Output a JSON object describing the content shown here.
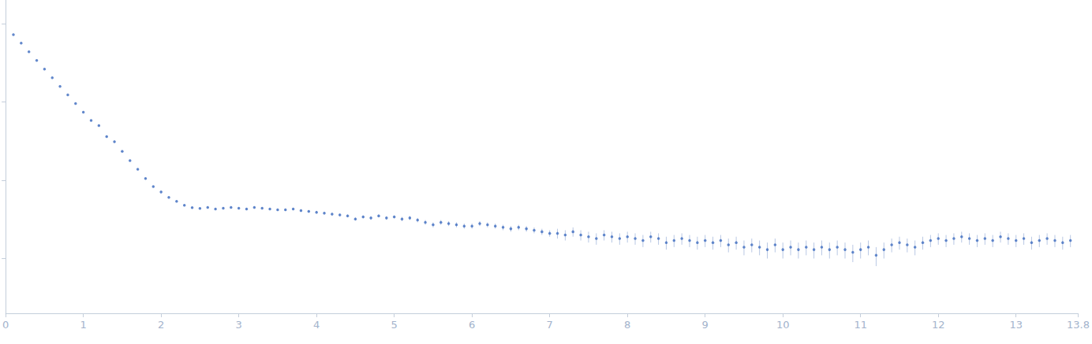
{
  "chart_data": {
    "type": "scatter",
    "log": "y",
    "grid": false,
    "tick_labels": "x",
    "marker": "circle",
    "color": "#3d6bbf",
    "xlim": [
      0,
      13.8
    ],
    "xticks": [
      0,
      1,
      2,
      3,
      4,
      5,
      6,
      7,
      8,
      9,
      10,
      11,
      12,
      13
    ],
    "ylim": [
      0.2,
      2000
    ],
    "yticks": [
      1,
      10,
      100,
      1000
    ],
    "x": [
      0.1,
      0.2,
      0.3,
      0.4,
      0.5,
      0.6,
      0.7,
      0.8,
      0.9,
      1.0,
      1.1,
      1.2,
      1.3,
      1.4,
      1.5,
      1.6,
      1.7,
      1.8,
      1.9,
      2.0,
      2.1,
      2.2,
      2.3,
      2.4,
      2.5,
      2.6,
      2.7,
      2.8,
      2.9,
      3.0,
      3.1,
      3.2,
      3.3,
      3.4,
      3.5,
      3.6,
      3.7,
      3.8,
      3.9,
      4.0,
      4.1,
      4.2,
      4.3,
      4.4,
      4.5,
      4.6,
      4.7,
      4.8,
      4.9,
      5.0,
      5.1,
      5.2,
      5.3,
      5.4,
      5.5,
      5.6,
      5.7,
      5.8,
      5.9,
      6.0,
      6.1,
      6.2,
      6.3,
      6.4,
      6.5,
      6.6,
      6.7,
      6.8,
      6.9,
      7.0,
      7.1,
      7.2,
      7.3,
      7.4,
      7.5,
      7.6,
      7.7,
      7.8,
      7.9,
      8.0,
      8.1,
      8.2,
      8.3,
      8.4,
      8.5,
      8.6,
      8.7,
      8.8,
      8.9,
      9.0,
      9.1,
      9.2,
      9.3,
      9.4,
      9.5,
      9.6,
      9.7,
      9.8,
      9.9,
      10.0,
      10.1,
      10.2,
      10.3,
      10.4,
      10.5,
      10.6,
      10.7,
      10.8,
      10.9,
      11.0,
      11.1,
      11.2,
      11.3,
      11.4,
      11.5,
      11.6,
      11.7,
      11.8,
      11.9,
      12.0,
      12.1,
      12.2,
      12.3,
      12.4,
      12.5,
      12.6,
      12.7,
      12.8,
      12.9,
      13.0,
      13.1,
      13.2,
      13.3,
      13.4,
      13.5,
      13.6,
      13.7
    ],
    "values": [
      724,
      562,
      437,
      339,
      263,
      204,
      158,
      123,
      95.5,
      74.1,
      58,
      50,
      36,
      31,
      23.4,
      17.8,
      13.8,
      10.5,
      8.32,
      7.08,
      6.03,
      5.37,
      4.79,
      4.47,
      4.37,
      4.5,
      4.3,
      4.4,
      4.5,
      4.4,
      4.3,
      4.5,
      4.4,
      4.3,
      4.2,
      4.2,
      4.3,
      4.1,
      4.0,
      3.9,
      3.8,
      3.7,
      3.6,
      3.5,
      3.2,
      3.4,
      3.3,
      3.5,
      3.3,
      3.4,
      3.2,
      3.3,
      3.1,
      2.9,
      2.7,
      2.9,
      2.8,
      2.7,
      2.6,
      2.6,
      2.8,
      2.7,
      2.6,
      2.5,
      2.4,
      2.5,
      2.4,
      2.3,
      2.2,
      2.1,
      2.1,
      2.0,
      2.2,
      2.0,
      1.9,
      1.8,
      2.0,
      1.9,
      1.8,
      1.9,
      1.8,
      1.7,
      1.9,
      1.8,
      1.6,
      1.7,
      1.8,
      1.7,
      1.6,
      1.7,
      1.6,
      1.7,
      1.5,
      1.6,
      1.4,
      1.5,
      1.4,
      1.3,
      1.5,
      1.3,
      1.4,
      1.3,
      1.4,
      1.3,
      1.4,
      1.3,
      1.4,
      1.3,
      1.2,
      1.3,
      1.4,
      1.1,
      1.3,
      1.5,
      1.6,
      1.5,
      1.4,
      1.6,
      1.7,
      1.8,
      1.7,
      1.8,
      1.9,
      1.8,
      1.7,
      1.8,
      1.7,
      1.9,
      1.8,
      1.7,
      1.8,
      1.6,
      1.7,
      1.8,
      1.7,
      1.6,
      1.7
    ],
    "errors": [
      2,
      2,
      1,
      1,
      1,
      1,
      1,
      0.5,
      0.5,
      0.5,
      1,
      1,
      1,
      1,
      0.4,
      0.3,
      0.2,
      0.15,
      0.12,
      0.1,
      0.1,
      0.1,
      0.1,
      0.1,
      0.1,
      0.1,
      0.1,
      0.1,
      0.1,
      0.1,
      0.1,
      0.1,
      0.1,
      0.1,
      0.1,
      0.15,
      0.15,
      0.15,
      0.15,
      0.15,
      0.15,
      0.15,
      0.15,
      0.15,
      0.15,
      0.15,
      0.15,
      0.15,
      0.15,
      0.15,
      0.2,
      0.2,
      0.2,
      0.2,
      0.2,
      0.2,
      0.2,
      0.2,
      0.2,
      0.2,
      0.2,
      0.2,
      0.2,
      0.2,
      0.2,
      0.2,
      0.2,
      0.2,
      0.2,
      0.2,
      0.3,
      0.3,
      0.3,
      0.3,
      0.3,
      0.3,
      0.3,
      0.3,
      0.3,
      0.3,
      0.3,
      0.3,
      0.3,
      0.3,
      0.3,
      0.3,
      0.3,
      0.3,
      0.3,
      0.3,
      0.3,
      0.3,
      0.3,
      0.3,
      0.3,
      0.3,
      0.3,
      0.3,
      0.3,
      0.3,
      0.3,
      0.3,
      0.3,
      0.3,
      0.3,
      0.3,
      0.3,
      0.3,
      0.3,
      0.3,
      0.3,
      0.3,
      0.3,
      0.3,
      0.3,
      0.3,
      0.3,
      0.3,
      0.3,
      0.3,
      0.3,
      0.3,
      0.3,
      0.3,
      0.3,
      0.3,
      0.3,
      0.3,
      0.3,
      0.3,
      0.3,
      0.3,
      0.3,
      0.3,
      0.3,
      0.3,
      0.3
    ]
  }
}
